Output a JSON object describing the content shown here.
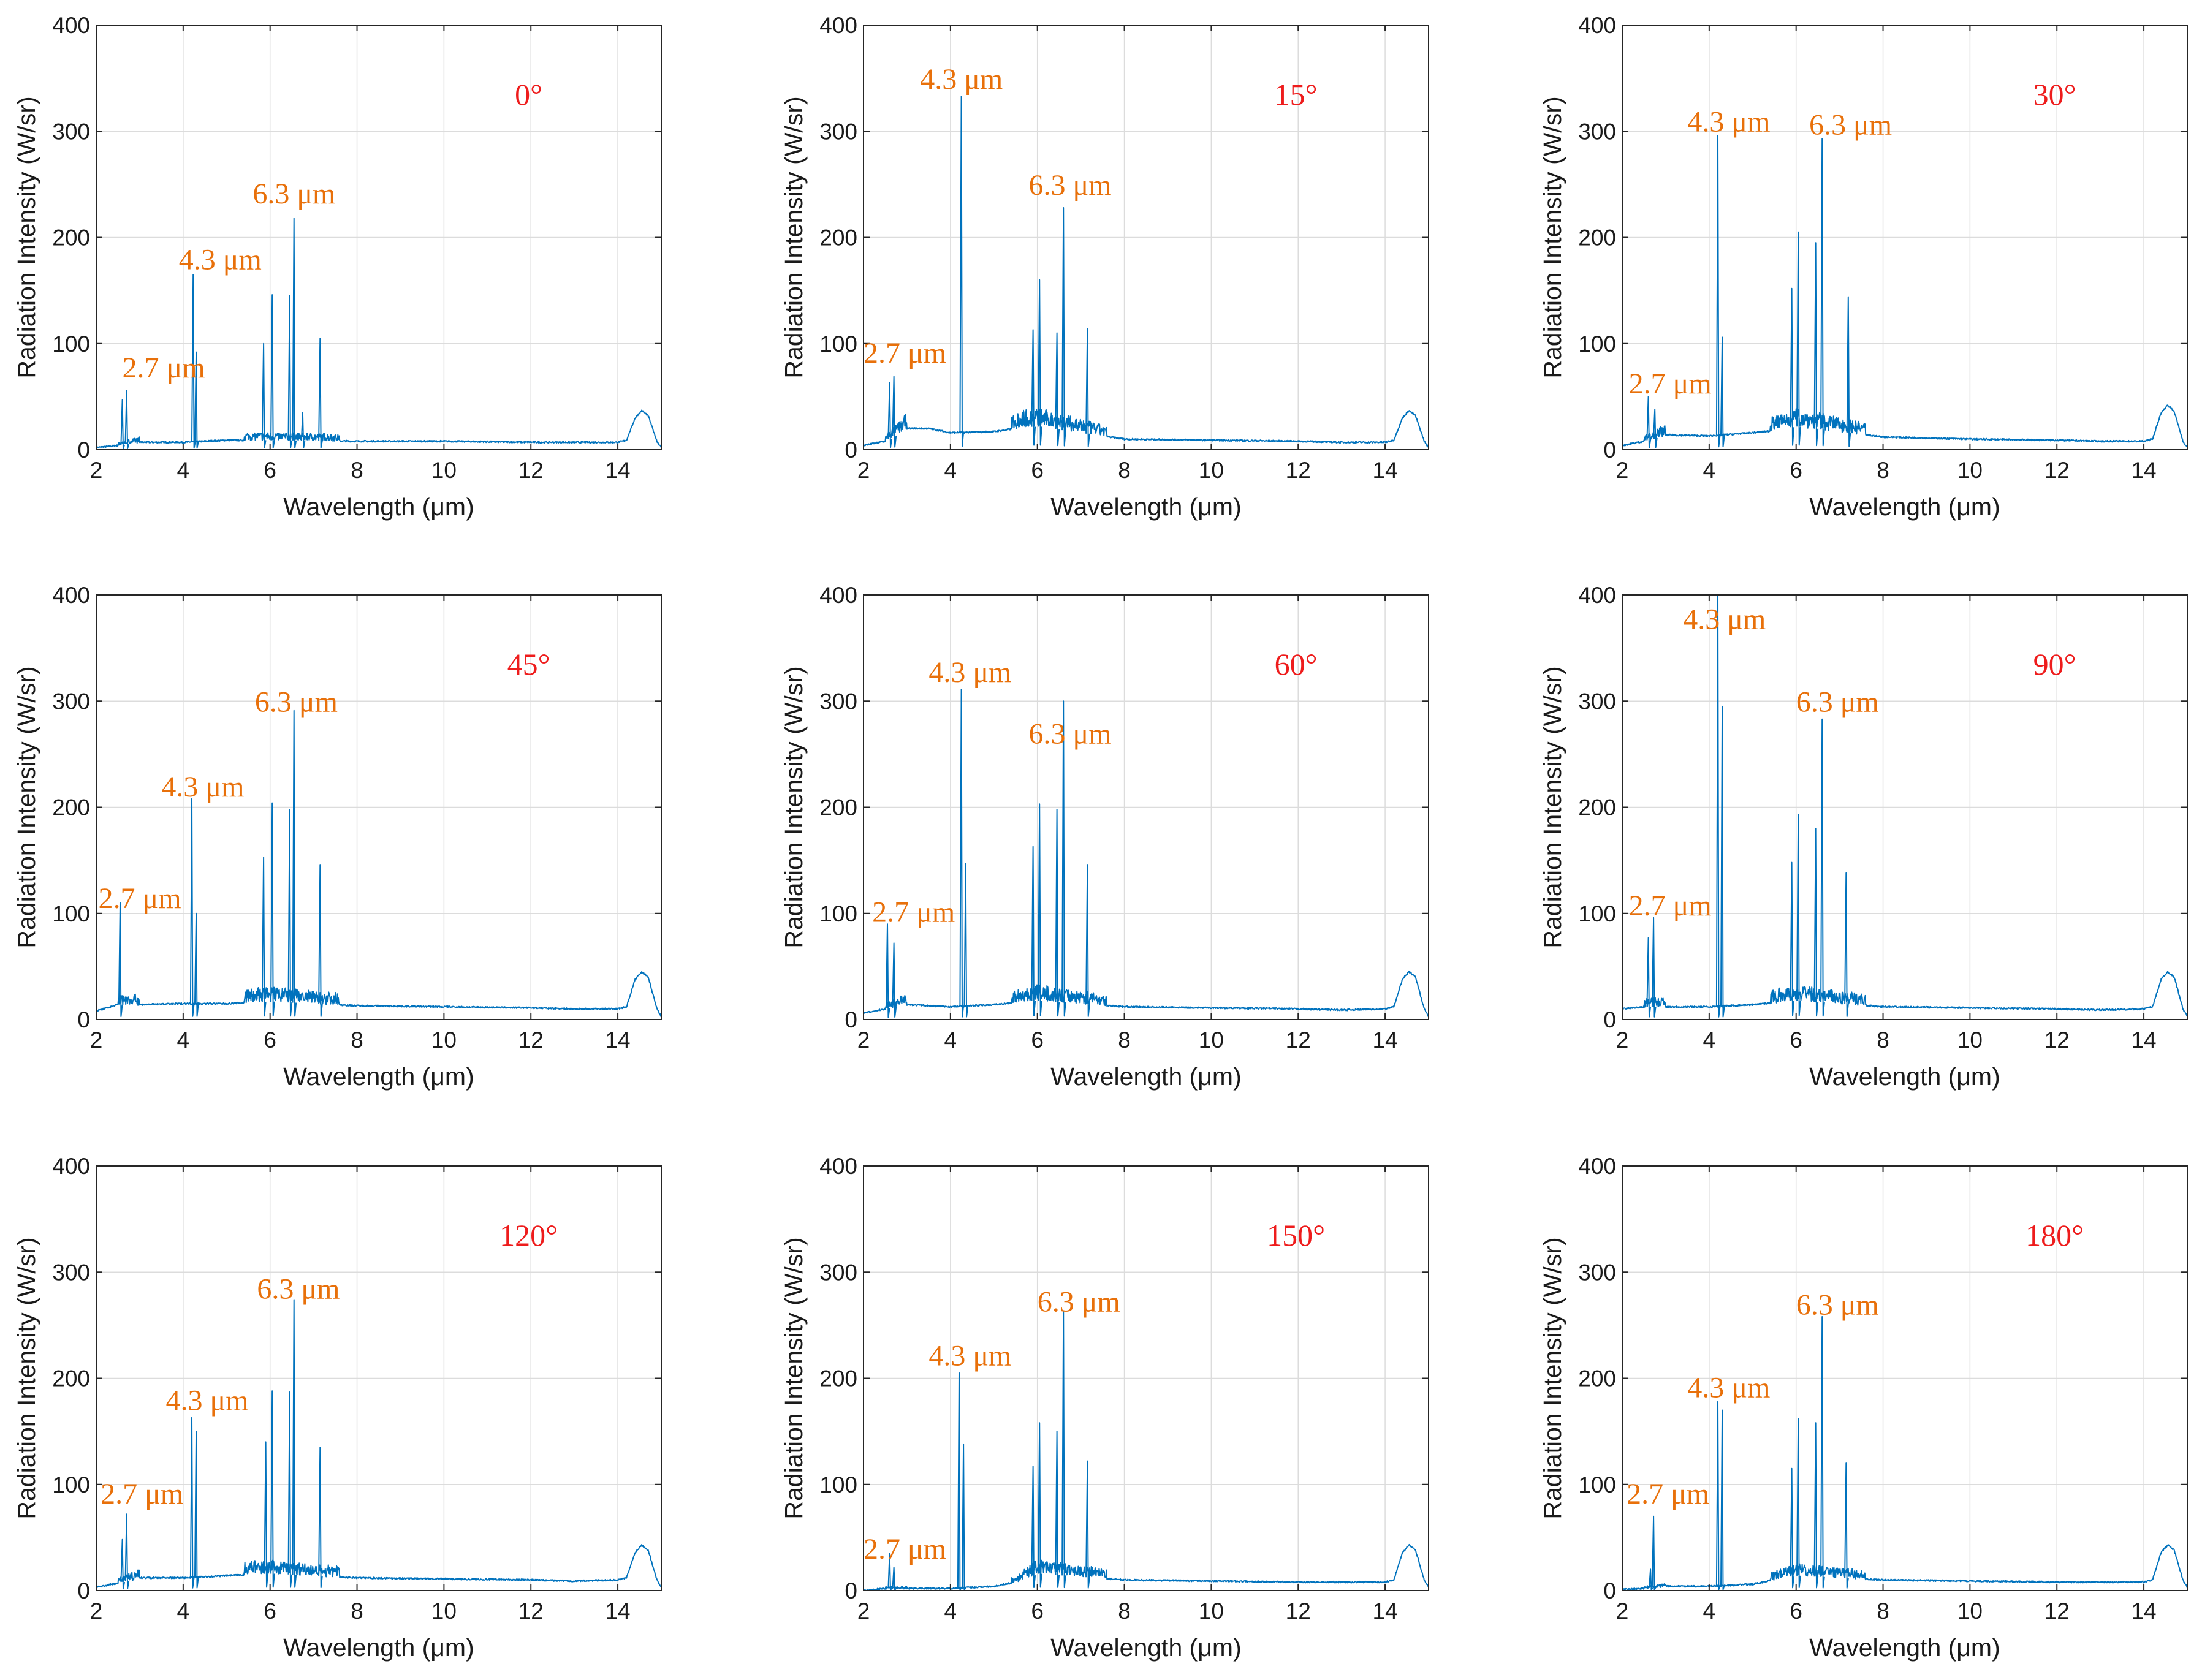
{
  "colors": {
    "line": "#0072bd",
    "band_label": "#e8700a",
    "angle_label": "#ee1c1c"
  },
  "chart_data": [
    {
      "type": "line",
      "title": "0°",
      "angle_label": "0°",
      "xlabel": "Wavelength (μm)",
      "ylabel": "Radiation Intensity (W/sr)",
      "xlim": [
        2,
        15
      ],
      "ylim": [
        0,
        400
      ],
      "xticks": [
        2,
        4,
        6,
        8,
        10,
        12,
        14
      ],
      "yticks": [
        0,
        100,
        200,
        300,
        400
      ],
      "grid": true,
      "baseline": [
        [
          2,
          2
        ],
        [
          2.5,
          4
        ],
        [
          3,
          7
        ],
        [
          4,
          7
        ],
        [
          5,
          9
        ],
        [
          6,
          9
        ],
        [
          8,
          8
        ],
        [
          10,
          8
        ],
        [
          12,
          7
        ],
        [
          13,
          7
        ],
        [
          14,
          7
        ],
        [
          14.2,
          9
        ],
        [
          14.4,
          30
        ],
        [
          14.55,
          37
        ],
        [
          14.7,
          32
        ],
        [
          14.9,
          8
        ],
        [
          15,
          2
        ]
      ],
      "peaks": [
        [
          2.6,
          47
        ],
        [
          2.7,
          56
        ],
        [
          4.23,
          165
        ],
        [
          4.3,
          92
        ],
        [
          5.85,
          100
        ],
        [
          6.05,
          146
        ],
        [
          6.45,
          145
        ],
        [
          6.55,
          218
        ],
        [
          6.75,
          35
        ],
        [
          7.15,
          105
        ]
      ],
      "annotations": [
        {
          "text": "2.7 μm",
          "x": 2.6,
          "y": 68
        },
        {
          "text": "4.3 μm",
          "x": 3.9,
          "y": 170
        },
        {
          "text": "6.3 μm",
          "x": 5.6,
          "y": 232
        }
      ]
    },
    {
      "type": "line",
      "title": "15°",
      "angle_label": "15°",
      "xlabel": "Wavelength (μm)",
      "ylabel": "Radiation Intensity (W/sr)",
      "xlim": [
        2,
        15
      ],
      "ylim": [
        0,
        400
      ],
      "xticks": [
        2,
        4,
        6,
        8,
        10,
        12,
        14
      ],
      "yticks": [
        0,
        100,
        200,
        300,
        400
      ],
      "grid": true,
      "baseline": [
        [
          2,
          4
        ],
        [
          2.5,
          8
        ],
        [
          3,
          20
        ],
        [
          3.5,
          20
        ],
        [
          4,
          16
        ],
        [
          5,
          17
        ],
        [
          5.5,
          20
        ],
        [
          6,
          22
        ],
        [
          8,
          10
        ],
        [
          10,
          9
        ],
        [
          12,
          8
        ],
        [
          13,
          7
        ],
        [
          14,
          7
        ],
        [
          14.2,
          9
        ],
        [
          14.4,
          30
        ],
        [
          14.55,
          37
        ],
        [
          14.7,
          32
        ],
        [
          14.9,
          8
        ],
        [
          15,
          2
        ]
      ],
      "peaks": [
        [
          2.6,
          63
        ],
        [
          2.7,
          69
        ],
        [
          4.25,
          333
        ],
        [
          5.9,
          113
        ],
        [
          6.05,
          160
        ],
        [
          6.45,
          110
        ],
        [
          6.6,
          228
        ],
        [
          7.15,
          114
        ]
      ],
      "annotations": [
        {
          "text": "2.7 μm",
          "x": 2.0,
          "y": 82
        },
        {
          "text": "4.3 μm",
          "x": 3.3,
          "y": 340
        },
        {
          "text": "6.3 μm",
          "x": 5.8,
          "y": 240
        }
      ]
    },
    {
      "type": "line",
      "title": "30°",
      "angle_label": "30°",
      "xlabel": "Wavelength (μm)",
      "ylabel": "Radiation Intensity (W/sr)",
      "xlim": [
        2,
        15
      ],
      "ylim": [
        0,
        400
      ],
      "xticks": [
        2,
        4,
        6,
        8,
        10,
        12,
        14
      ],
      "yticks": [
        0,
        100,
        200,
        300,
        400
      ],
      "grid": true,
      "baseline": [
        [
          2,
          4
        ],
        [
          2.5,
          8
        ],
        [
          3,
          14
        ],
        [
          4,
          13
        ],
        [
          5,
          16
        ],
        [
          5.5,
          18
        ],
        [
          6,
          22
        ],
        [
          8,
          12
        ],
        [
          10,
          10
        ],
        [
          12,
          9
        ],
        [
          13,
          8
        ],
        [
          14,
          8
        ],
        [
          14.2,
          10
        ],
        [
          14.4,
          35
        ],
        [
          14.55,
          42
        ],
        [
          14.7,
          36
        ],
        [
          14.9,
          8
        ],
        [
          15,
          2
        ]
      ],
      "peaks": [
        [
          2.6,
          50
        ],
        [
          2.75,
          38
        ],
        [
          4.2,
          296
        ],
        [
          4.3,
          106
        ],
        [
          5.9,
          152
        ],
        [
          6.05,
          205
        ],
        [
          6.45,
          195
        ],
        [
          6.6,
          293
        ],
        [
          7.2,
          144
        ]
      ],
      "annotations": [
        {
          "text": "2.7 μm",
          "x": 2.15,
          "y": 53
        },
        {
          "text": "4.3 μm",
          "x": 3.5,
          "y": 300
        },
        {
          "text": "6.3 μm",
          "x": 6.3,
          "y": 297
        }
      ]
    },
    {
      "type": "line",
      "title": "45°",
      "angle_label": "45°",
      "xlabel": "Wavelength (μm)",
      "ylabel": "Radiation Intensity (W/sr)",
      "xlim": [
        2,
        15
      ],
      "ylim": [
        0,
        400
      ],
      "xticks": [
        2,
        4,
        6,
        8,
        10,
        12,
        14
      ],
      "yticks": [
        0,
        100,
        200,
        300,
        400
      ],
      "grid": true,
      "baseline": [
        [
          2,
          8
        ],
        [
          2.5,
          14
        ],
        [
          3,
          14
        ],
        [
          4,
          15
        ],
        [
          5,
          15
        ],
        [
          6,
          17
        ],
        [
          8,
          13
        ],
        [
          10,
          12
        ],
        [
          12,
          11
        ],
        [
          13,
          10
        ],
        [
          14,
          10
        ],
        [
          14.2,
          12
        ],
        [
          14.4,
          38
        ],
        [
          14.55,
          45
        ],
        [
          14.7,
          40
        ],
        [
          14.9,
          10
        ],
        [
          15,
          3
        ]
      ],
      "peaks": [
        [
          2.55,
          110
        ],
        [
          4.2,
          208
        ],
        [
          4.3,
          100
        ],
        [
          5.85,
          153
        ],
        [
          6.05,
          204
        ],
        [
          6.45,
          198
        ],
        [
          6.55,
          291
        ],
        [
          7.15,
          146
        ]
      ],
      "annotations": [
        {
          "text": "2.7 μm",
          "x": 2.05,
          "y": 105
        },
        {
          "text": "4.3 μm",
          "x": 3.5,
          "y": 210
        },
        {
          "text": "6.3 μm",
          "x": 5.65,
          "y": 290
        }
      ]
    },
    {
      "type": "line",
      "title": "60°",
      "angle_label": "60°",
      "xlabel": "Wavelength (μm)",
      "ylabel": "Radiation Intensity (W/sr)",
      "xlim": [
        2,
        15
      ],
      "ylim": [
        0,
        400
      ],
      "xticks": [
        2,
        4,
        6,
        8,
        10,
        12,
        14
      ],
      "yticks": [
        0,
        100,
        200,
        300,
        400
      ],
      "grid": true,
      "baseline": [
        [
          2,
          6
        ],
        [
          2.5,
          10
        ],
        [
          3,
          14
        ],
        [
          4,
          12
        ],
        [
          5,
          14
        ],
        [
          6,
          18
        ],
        [
          8,
          12
        ],
        [
          10,
          11
        ],
        [
          12,
          10
        ],
        [
          13,
          9
        ],
        [
          14,
          10
        ],
        [
          14.2,
          12
        ],
        [
          14.4,
          38
        ],
        [
          14.55,
          45
        ],
        [
          14.7,
          40
        ],
        [
          14.9,
          10
        ],
        [
          15,
          3
        ]
      ],
      "peaks": [
        [
          2.55,
          90
        ],
        [
          2.7,
          72
        ],
        [
          4.25,
          311
        ],
        [
          4.35,
          147
        ],
        [
          5.9,
          163
        ],
        [
          6.05,
          203
        ],
        [
          6.45,
          198
        ],
        [
          6.6,
          300
        ],
        [
          7.15,
          146
        ]
      ],
      "annotations": [
        {
          "text": "2.7 μm",
          "x": 2.2,
          "y": 92
        },
        {
          "text": "4.3 μm",
          "x": 3.5,
          "y": 318
        },
        {
          "text": "6.3 μm",
          "x": 5.8,
          "y": 260
        }
      ]
    },
    {
      "type": "line",
      "title": "90°",
      "angle_label": "90°",
      "xlabel": "Wavelength (μm)",
      "ylabel": "Radiation Intensity (W/sr)",
      "xlim": [
        2,
        15
      ],
      "ylim": [
        0,
        400
      ],
      "xticks": [
        2,
        4,
        6,
        8,
        10,
        12,
        14
      ],
      "yticks": [
        0,
        100,
        200,
        300,
        400
      ],
      "grid": true,
      "baseline": [
        [
          2,
          10
        ],
        [
          2.5,
          12
        ],
        [
          3,
          12
        ],
        [
          4,
          12
        ],
        [
          5,
          14
        ],
        [
          6,
          18
        ],
        [
          8,
          12
        ],
        [
          10,
          11
        ],
        [
          12,
          10
        ],
        [
          13,
          9
        ],
        [
          14,
          10
        ],
        [
          14.2,
          12
        ],
        [
          14.4,
          38
        ],
        [
          14.55,
          45
        ],
        [
          14.7,
          40
        ],
        [
          14.9,
          10
        ],
        [
          15,
          3
        ]
      ],
      "peaks": [
        [
          2.6,
          77
        ],
        [
          2.72,
          96
        ],
        [
          4.2,
          400
        ],
        [
          4.3,
          295
        ],
        [
          5.9,
          148
        ],
        [
          6.05,
          193
        ],
        [
          6.45,
          180
        ],
        [
          6.6,
          283
        ],
        [
          7.15,
          138
        ]
      ],
      "annotations": [
        {
          "text": "2.7 μm",
          "x": 2.15,
          "y": 98
        },
        {
          "text": "4.3 μm",
          "x": 3.4,
          "y": 368
        },
        {
          "text": "6.3 μm",
          "x": 6.0,
          "y": 290
        }
      ]
    },
    {
      "type": "line",
      "title": "120°",
      "angle_label": "120°",
      "xlabel": "Wavelength (μm)",
      "ylabel": "Radiation Intensity (W/sr)",
      "xlim": [
        2,
        15
      ],
      "ylim": [
        0,
        400
      ],
      "xticks": [
        2,
        4,
        6,
        8,
        10,
        12,
        14
      ],
      "yticks": [
        0,
        100,
        200,
        300,
        400
      ],
      "grid": true,
      "baseline": [
        [
          2,
          3
        ],
        [
          2.5,
          7
        ],
        [
          3,
          12
        ],
        [
          4,
          12
        ],
        [
          5,
          14
        ],
        [
          6,
          16
        ],
        [
          8,
          12
        ],
        [
          10,
          11
        ],
        [
          12,
          10
        ],
        [
          13,
          9
        ],
        [
          14,
          10
        ],
        [
          14.2,
          12
        ],
        [
          14.4,
          36
        ],
        [
          14.55,
          43
        ],
        [
          14.7,
          38
        ],
        [
          14.9,
          10
        ],
        [
          15,
          3
        ]
      ],
      "peaks": [
        [
          2.6,
          48
        ],
        [
          2.7,
          72
        ],
        [
          4.2,
          163
        ],
        [
          4.3,
          150
        ],
        [
          5.9,
          140
        ],
        [
          6.05,
          188
        ],
        [
          6.45,
          187
        ],
        [
          6.55,
          274
        ],
        [
          7.15,
          135
        ]
      ],
      "annotations": [
        {
          "text": "2.7 μm",
          "x": 2.1,
          "y": 82
        },
        {
          "text": "4.3 μm",
          "x": 3.6,
          "y": 170
        },
        {
          "text": "6.3 μm",
          "x": 5.7,
          "y": 275
        }
      ]
    },
    {
      "type": "line",
      "title": "150°",
      "angle_label": "150°",
      "xlabel": "Wavelength (μm)",
      "ylabel": "Radiation Intensity (W/sr)",
      "xlim": [
        2,
        15
      ],
      "ylim": [
        0,
        400
      ],
      "xticks": [
        2,
        4,
        6,
        8,
        10,
        12,
        14
      ],
      "yticks": [
        0,
        100,
        200,
        300,
        400
      ],
      "grid": true,
      "baseline": [
        [
          2,
          0
        ],
        [
          2.5,
          2
        ],
        [
          3,
          2
        ],
        [
          4,
          2
        ],
        [
          5,
          4
        ],
        [
          5.5,
          8
        ],
        [
          6,
          16
        ],
        [
          8,
          10
        ],
        [
          10,
          9
        ],
        [
          12,
          8
        ],
        [
          13,
          8
        ],
        [
          14,
          8
        ],
        [
          14.2,
          10
        ],
        [
          14.4,
          36
        ],
        [
          14.55,
          43
        ],
        [
          14.7,
          38
        ],
        [
          14.9,
          10
        ],
        [
          15,
          3
        ]
      ],
      "peaks": [
        [
          2.6,
          35
        ],
        [
          2.7,
          22
        ],
        [
          4.2,
          205
        ],
        [
          4.3,
          138
        ],
        [
          5.9,
          117
        ],
        [
          6.05,
          158
        ],
        [
          6.45,
          150
        ],
        [
          6.6,
          263
        ],
        [
          7.15,
          122
        ]
      ],
      "annotations": [
        {
          "text": "2.7 μm",
          "x": 2.0,
          "y": 30
        },
        {
          "text": "4.3 μm",
          "x": 3.5,
          "y": 212
        },
        {
          "text": "6.3 μm",
          "x": 6.0,
          "y": 263
        }
      ]
    },
    {
      "type": "line",
      "title": "180°",
      "angle_label": "180°",
      "xlabel": "Wavelength (μm)",
      "ylabel": "Radiation Intensity (W/sr)",
      "xlim": [
        2,
        15
      ],
      "ylim": [
        0,
        400
      ],
      "xticks": [
        2,
        4,
        6,
        8,
        10,
        12,
        14
      ],
      "yticks": [
        0,
        100,
        200,
        300,
        400
      ],
      "grid": true,
      "baseline": [
        [
          2,
          1
        ],
        [
          2.5,
          2
        ],
        [
          3,
          4
        ],
        [
          4,
          4
        ],
        [
          5,
          6
        ],
        [
          5.5,
          10
        ],
        [
          6,
          14
        ],
        [
          8,
          10
        ],
        [
          10,
          9
        ],
        [
          12,
          8
        ],
        [
          13,
          8
        ],
        [
          14,
          8
        ],
        [
          14.2,
          10
        ],
        [
          14.4,
          36
        ],
        [
          14.55,
          43
        ],
        [
          14.7,
          38
        ],
        [
          14.9,
          10
        ],
        [
          15,
          3
        ]
      ],
      "peaks": [
        [
          2.65,
          20
        ],
        [
          2.72,
          70
        ],
        [
          4.2,
          178
        ],
        [
          4.3,
          170
        ],
        [
          5.9,
          115
        ],
        [
          6.05,
          162
        ],
        [
          6.45,
          158
        ],
        [
          6.6,
          258
        ],
        [
          7.15,
          120
        ]
      ],
      "annotations": [
        {
          "text": "2.7 μm",
          "x": 2.1,
          "y": 82
        },
        {
          "text": "4.3 μm",
          "x": 3.5,
          "y": 182
        },
        {
          "text": "6.3 μm",
          "x": 6.0,
          "y": 260
        }
      ]
    }
  ]
}
